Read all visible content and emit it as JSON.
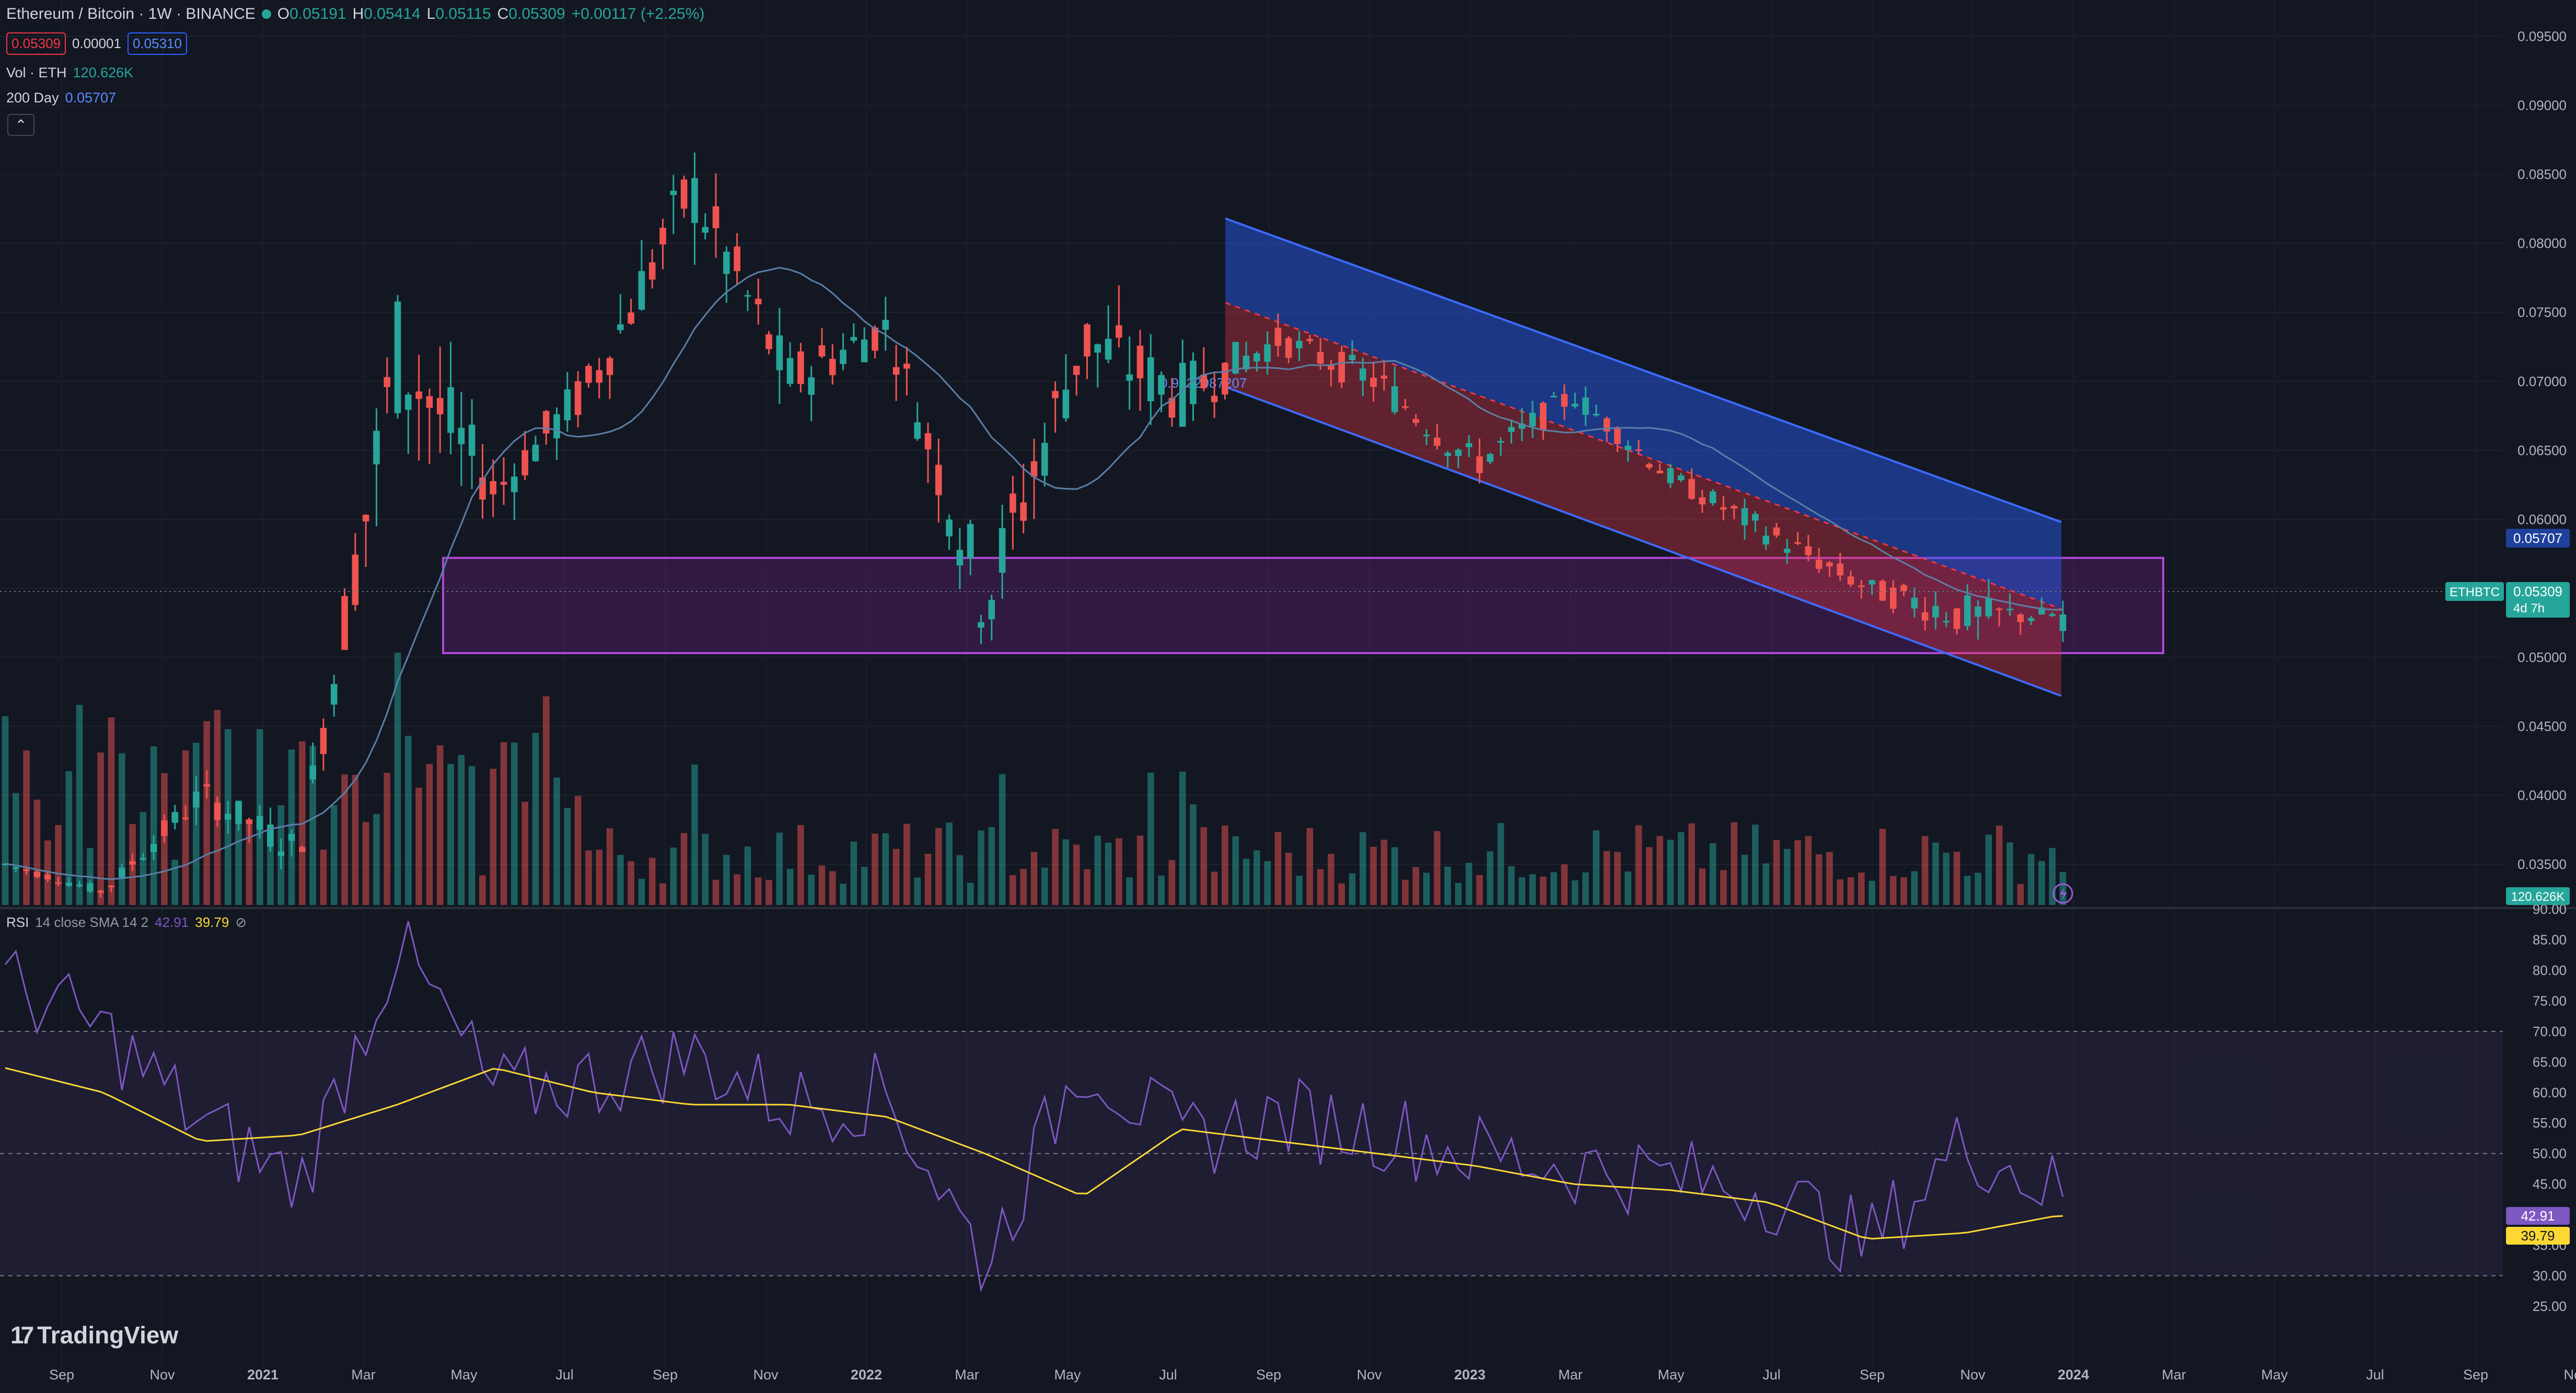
{
  "header": {
    "symbol_title": "Ethereum / Bitcoin · 1W · BINANCE",
    "ohlc": [
      {
        "k": "O",
        "v": "0.05191"
      },
      {
        "k": "H",
        "v": "0.05414"
      },
      {
        "k": "L",
        "v": "0.05115"
      },
      {
        "k": "C",
        "v": "0.05309"
      }
    ],
    "change": "+0.00117 (+2.25%)",
    "bid": "0.05309",
    "spread": "0.00001",
    "ask": "0.05310",
    "vol_label": "Vol · ETH",
    "vol_value": "120.626K",
    "ma_label": "200 Day",
    "ma_value": "0.05707",
    "collapse_glyph": "⌃"
  },
  "rsi_header": {
    "label": "RSI",
    "params": "14 close SMA 14 2",
    "rsi_value": "42.91",
    "sma_value": "39.79",
    "extra": "⊘"
  },
  "branding": {
    "logo_text": "TradingView",
    "logo_mark": "17"
  },
  "price_scale": {
    "labels": [
      "0.09500",
      "0.09000",
      "0.08500",
      "0.08000",
      "0.07500",
      "0.07000",
      "0.06500",
      "0.06000",
      "0.05500",
      "0.05000",
      "0.04500",
      "0.04000",
      "0.03500"
    ],
    "badges": {
      "ma": "0.05707",
      "symbol": "ETHBTC",
      "last": "0.05309",
      "countdown": "4d 7h",
      "volume": "120.626K"
    }
  },
  "rsi_scale": {
    "labels": [
      "90.00",
      "85.00",
      "80.00",
      "75.00",
      "70.00",
      "65.00",
      "60.00",
      "55.00",
      "50.00",
      "45.00",
      "40.00",
      "35.00",
      "30.00",
      "25.00"
    ],
    "badges": {
      "rsi": "42.91",
      "sma": "39.79"
    }
  },
  "time_axis": {
    "labels": [
      "Sep",
      "Nov",
      "2021",
      "Mar",
      "May",
      "Jul",
      "Sep",
      "Nov",
      "2022",
      "Mar",
      "May",
      "Jul",
      "Sep",
      "Nov",
      "2023",
      "Mar",
      "May",
      "Jul",
      "Sep",
      "Nov",
      "2024",
      "Mar",
      "May",
      "Jul",
      "Sep",
      "Nov"
    ]
  },
  "colors": {
    "background": "#131722",
    "up": "#26a69a",
    "down": "#ef5350",
    "ma": "#5b7fa6",
    "channel_upper": "#2962ff",
    "channel_lower": "#f23645",
    "zone": "#9c27b0",
    "rsi_line": "#7e57c2",
    "rsi_sma": "#fdd835"
  },
  "drawings": {
    "channel_label": "0.9032987207",
    "support_zone": {
      "low": 0.0503,
      "high": 0.0572
    }
  },
  "chart_data": {
    "type": "candlestick",
    "title": "Ethereum / Bitcoin · 1W · BINANCE",
    "ylim": [
      0.0325,
      0.0965
    ],
    "candles": [
      {
        "t": "2020-09",
        "o": 0.0365,
        "h": 0.037,
        "l": 0.0345,
        "c": 0.035
      },
      {
        "t": "2020-11",
        "o": 0.0335,
        "h": 0.0355,
        "l": 0.0325,
        "c": 0.033
      },
      {
        "t": "2021-01",
        "o": 0.033,
        "h": 0.042,
        "l": 0.0325,
        "c": 0.04
      },
      {
        "t": "2021-03",
        "o": 0.04,
        "h": 0.044,
        "l": 0.0345,
        "c": 0.036
      },
      {
        "t": "2021-05",
        "o": 0.044,
        "h": 0.083,
        "l": 0.043,
        "c": 0.072
      },
      {
        "t": "2021-07",
        "o": 0.064,
        "h": 0.069,
        "l": 0.055,
        "c": 0.062
      },
      {
        "t": "2021-09",
        "o": 0.064,
        "h": 0.078,
        "l": 0.063,
        "c": 0.07
      },
      {
        "t": "2021-11",
        "o": 0.072,
        "h": 0.088,
        "l": 0.066,
        "c": 0.084
      },
      {
        "t": "2022-01",
        "o": 0.083,
        "h": 0.086,
        "l": 0.068,
        "c": 0.07
      },
      {
        "t": "2022-03",
        "o": 0.07,
        "h": 0.076,
        "l": 0.064,
        "c": 0.074
      },
      {
        "t": "2022-05",
        "o": 0.073,
        "h": 0.075,
        "l": 0.049,
        "c": 0.054
      },
      {
        "t": "2022-07",
        "o": 0.054,
        "h": 0.076,
        "l": 0.053,
        "c": 0.073
      },
      {
        "t": "2022-09",
        "o": 0.081,
        "h": 0.086,
        "l": 0.067,
        "c": 0.069
      },
      {
        "t": "2022-11",
        "o": 0.069,
        "h": 0.076,
        "l": 0.068,
        "c": 0.073
      },
      {
        "t": "2023-01",
        "o": 0.073,
        "h": 0.078,
        "l": 0.068,
        "c": 0.07
      },
      {
        "t": "2023-03",
        "o": 0.07,
        "h": 0.072,
        "l": 0.062,
        "c": 0.064
      },
      {
        "t": "2023-05",
        "o": 0.066,
        "h": 0.071,
        "l": 0.064,
        "c": 0.069
      },
      {
        "t": "2023-07",
        "o": 0.064,
        "h": 0.066,
        "l": 0.06,
        "c": 0.063
      },
      {
        "t": "2023-09",
        "o": 0.063,
        "h": 0.065,
        "l": 0.057,
        "c": 0.059
      },
      {
        "t": "2023-11",
        "o": 0.054,
        "h": 0.057,
        "l": 0.051,
        "c": 0.055
      },
      {
        "t": "2024-01",
        "o": 0.051,
        "h": 0.061,
        "l": 0.048,
        "c": 0.053
      },
      {
        "t": "2024-02",
        "o": 0.0519,
        "h": 0.0541,
        "l": 0.0511,
        "c": 0.0531
      }
    ],
    "rsi": [
      78,
      70,
      55,
      45,
      84,
      60,
      62,
      66,
      58,
      60,
      32,
      66,
      52,
      56,
      54,
      50,
      48,
      46,
      44,
      35,
      52,
      43
    ],
    "rsi_sma": [
      64,
      60,
      52,
      53,
      58,
      64,
      60,
      58,
      58,
      56,
      50,
      43,
      54,
      52,
      50,
      48,
      45,
      44,
      42,
      36,
      37,
      40
    ],
    "rsi_ylim": [
      25,
      90
    ],
    "rsi_bands": [
      70,
      50,
      30
    ]
  }
}
